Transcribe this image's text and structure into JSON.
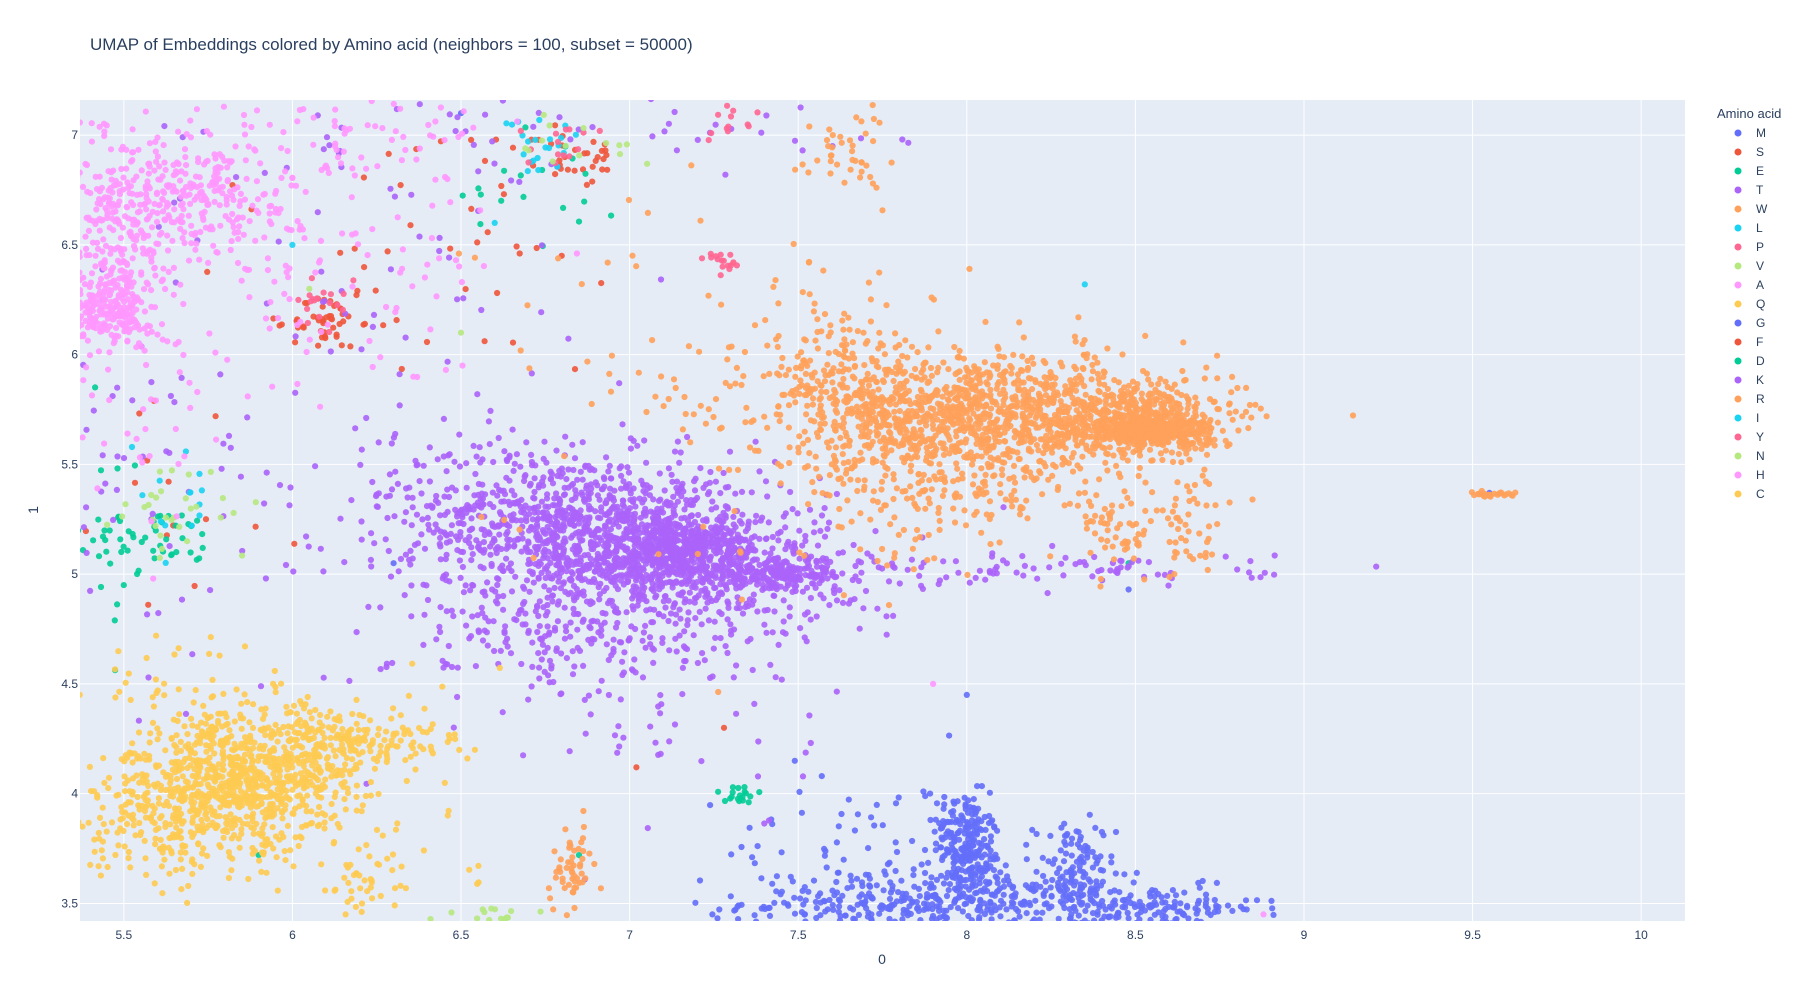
{
  "chart_data": {
    "type": "scatter",
    "title": "UMAP of Embeddings colored by Amino acid (neighbors = 100, subset = 50000)",
    "xlabel": "0",
    "ylabel": "1",
    "xlim": [
      5.37,
      10.13
    ],
    "ylim": [
      3.42,
      7.16
    ],
    "x_ticks": [
      "5.5",
      "6",
      "6.5",
      "7",
      "7.5",
      "8",
      "8.5",
      "9",
      "9.5",
      "10"
    ],
    "x_tick_values": [
      5.5,
      6,
      6.5,
      7,
      7.5,
      8,
      8.5,
      9,
      9.5,
      10
    ],
    "y_ticks": [
      "3.5",
      "4",
      "4.5",
      "5",
      "5.5",
      "6",
      "6.5",
      "7"
    ],
    "y_tick_values": [
      3.5,
      4,
      4.5,
      5,
      5.5,
      6,
      6.5,
      7
    ],
    "grid": true,
    "legend_title": "Amino acid",
    "legend_placement": "right",
    "series": [
      {
        "name": "M",
        "color": "#636efa",
        "clusters": [
          {
            "cx": 8.0,
            "cy": 3.75,
            "sx": 0.05,
            "sy": 0.14,
            "n": 260,
            "r": -0.3
          },
          {
            "cx": 7.9,
            "cy": 3.5,
            "sx": 0.28,
            "sy": 0.07,
            "n": 360
          },
          {
            "cx": 8.32,
            "cy": 3.62,
            "sx": 0.06,
            "sy": 0.13,
            "n": 130
          },
          {
            "cx": 8.55,
            "cy": 3.48,
            "sx": 0.16,
            "sy": 0.05,
            "n": 140
          },
          {
            "cx": 7.65,
            "cy": 3.75,
            "sx": 0.18,
            "sy": 0.15,
            "n": 55
          }
        ],
        "extra": [
          [
            9.55,
            5.37
          ],
          [
            8.0,
            4.45
          ],
          [
            7.49,
            4.15
          ],
          [
            7.57,
            4.08
          ],
          [
            8.48,
            4.93
          ],
          [
            6.3,
            5.05
          ],
          [
            6.5,
            7.1
          ]
        ]
      },
      {
        "name": "S",
        "color": "#ef553b",
        "clusters": [
          {
            "cx": 6.1,
            "cy": 6.15,
            "sx": 0.05,
            "sy": 0.06,
            "n": 45
          },
          {
            "cx": 6.85,
            "cy": 6.9,
            "sx": 0.06,
            "sy": 0.07,
            "n": 30
          },
          {
            "cx": 6.4,
            "cy": 6.5,
            "sx": 0.4,
            "sy": 0.35,
            "n": 45
          },
          {
            "cx": 5.6,
            "cy": 5.4,
            "sx": 0.25,
            "sy": 0.3,
            "n": 20
          }
        ],
        "extra": [
          [
            7.28,
            4.3
          ],
          [
            7.02,
            4.12
          ]
        ]
      },
      {
        "name": "E",
        "color": "#00cc96",
        "clusters": [
          {
            "cx": 5.6,
            "cy": 5.15,
            "sx": 0.1,
            "sy": 0.07,
            "n": 45
          },
          {
            "cx": 7.32,
            "cy": 4.0,
            "sx": 0.04,
            "sy": 0.025,
            "n": 18
          },
          {
            "cx": 6.75,
            "cy": 6.8,
            "sx": 0.12,
            "sy": 0.15,
            "n": 18
          },
          {
            "cx": 5.45,
            "cy": 5.2,
            "sx": 0.06,
            "sy": 0.3,
            "n": 18
          }
        ],
        "extra": [
          [
            8.48,
            5.05
          ],
          [
            6.85,
            3.72
          ],
          [
            5.9,
            3.72
          ],
          [
            5.5,
            4.95
          ]
        ]
      },
      {
        "name": "T",
        "color": "#ab63fa",
        "clusters": [
          {
            "cx": 6.95,
            "cy": 5.15,
            "sx": 0.32,
            "sy": 0.2,
            "n": 1600,
            "r": -0.35
          },
          {
            "cx": 7.45,
            "cy": 5.0,
            "sx": 0.1,
            "sy": 0.035,
            "n": 200
          },
          {
            "cx": 7.15,
            "cy": 5.1,
            "sx": 0.12,
            "sy": 0.08,
            "n": 450
          },
          {
            "cx": 6.8,
            "cy": 4.7,
            "sx": 0.25,
            "sy": 0.15,
            "n": 180
          },
          {
            "cx": 7.15,
            "cy": 4.3,
            "sx": 0.2,
            "sy": 0.25,
            "n": 40
          },
          {
            "cx": 8.3,
            "cy": 5.02,
            "sx": 0.3,
            "sy": 0.04,
            "n": 80
          },
          {
            "cx": 6.2,
            "cy": 5.9,
            "sx": 0.5,
            "sy": 0.8,
            "n": 120
          },
          {
            "cx": 6.8,
            "cy": 7.0,
            "sx": 0.5,
            "sy": 0.12,
            "n": 50
          },
          {
            "cx": 5.5,
            "cy": 5.4,
            "sx": 0.1,
            "sy": 0.35,
            "n": 30
          }
        ],
        "extra": []
      },
      {
        "name": "W",
        "color": "#ffa15a",
        "clusters": [
          {
            "cx": 8.1,
            "cy": 5.72,
            "sx": 0.32,
            "sy": 0.14,
            "n": 1100,
            "r": -0.1
          },
          {
            "cx": 8.5,
            "cy": 5.72,
            "sx": 0.12,
            "sy": 0.07,
            "n": 350
          },
          {
            "cx": 8.55,
            "cy": 5.65,
            "sx": 0.08,
            "sy": 0.03,
            "n": 350
          },
          {
            "cx": 7.9,
            "cy": 5.55,
            "sx": 0.18,
            "sy": 0.25,
            "n": 350
          },
          {
            "cx": 8.65,
            "cy": 5.2,
            "sx": 0.05,
            "sy": 0.12,
            "n": 45
          },
          {
            "cx": 8.45,
            "cy": 5.2,
            "sx": 0.06,
            "sy": 0.1,
            "n": 60
          },
          {
            "cx": 7.65,
            "cy": 5.9,
            "sx": 0.14,
            "sy": 0.18,
            "n": 160
          },
          {
            "cx": 7.3,
            "cy": 5.9,
            "sx": 0.35,
            "sy": 0.5,
            "n": 90
          },
          {
            "cx": 7.65,
            "cy": 6.95,
            "sx": 0.06,
            "sy": 0.12,
            "n": 40
          },
          {
            "cx": 6.82,
            "cy": 3.65,
            "sx": 0.035,
            "sy": 0.09,
            "n": 55,
            "r": 0.55
          },
          {
            "cx": 9.57,
            "cy": 5.36,
            "sx": 0.035,
            "sy": 0.006,
            "n": 28
          }
        ],
        "extra": []
      },
      {
        "name": "L",
        "color": "#19d3f3",
        "clusters": [
          {
            "cx": 6.75,
            "cy": 6.95,
            "sx": 0.06,
            "sy": 0.08,
            "n": 22
          },
          {
            "cx": 5.65,
            "cy": 5.3,
            "sx": 0.08,
            "sy": 0.12,
            "n": 14
          }
        ],
        "extra": [
          [
            8.35,
            6.32
          ],
          [
            6.0,
            6.5
          ],
          [
            6.6,
            6.6
          ]
        ]
      },
      {
        "name": "P",
        "color": "#ff6692",
        "clusters": [
          {
            "cx": 7.27,
            "cy": 6.42,
            "sx": 0.025,
            "sy": 0.025,
            "n": 16
          },
          {
            "cx": 6.1,
            "cy": 6.2,
            "sx": 0.05,
            "sy": 0.05,
            "n": 18
          },
          {
            "cx": 6.8,
            "cy": 6.95,
            "sx": 0.06,
            "sy": 0.08,
            "n": 14
          },
          {
            "cx": 7.3,
            "cy": 7.05,
            "sx": 0.04,
            "sy": 0.04,
            "n": 12
          }
        ],
        "extra": []
      },
      {
        "name": "V",
        "color": "#b6e880",
        "clusters": [
          {
            "cx": 5.65,
            "cy": 5.3,
            "sx": 0.1,
            "sy": 0.12,
            "n": 30
          },
          {
            "cx": 6.6,
            "cy": 3.45,
            "sx": 0.12,
            "sy": 0.025,
            "n": 14
          },
          {
            "cx": 6.85,
            "cy": 6.95,
            "sx": 0.1,
            "sy": 0.1,
            "n": 14
          }
        ],
        "extra": [
          [
            6.05,
            6.3
          ],
          [
            6.5,
            6.1
          ]
        ]
      },
      {
        "name": "A",
        "color": "#ff97ff",
        "clusters": [
          {
            "cx": 5.45,
            "cy": 6.22,
            "sx": 0.07,
            "sy": 0.09,
            "n": 250
          },
          {
            "cx": 5.65,
            "cy": 6.72,
            "sx": 0.18,
            "sy": 0.15,
            "n": 350
          },
          {
            "cx": 5.5,
            "cy": 6.5,
            "sx": 0.08,
            "sy": 0.25,
            "n": 130
          },
          {
            "cx": 6.05,
            "cy": 6.55,
            "sx": 0.3,
            "sy": 0.4,
            "n": 140
          },
          {
            "cx": 6.3,
            "cy": 7.0,
            "sx": 0.15,
            "sy": 0.08,
            "n": 40
          },
          {
            "cx": 5.6,
            "cy": 5.7,
            "sx": 0.15,
            "sy": 0.25,
            "n": 30
          }
        ],
        "extra": [
          [
            7.9,
            4.5
          ],
          [
            8.88,
            3.45
          ]
        ]
      },
      {
        "name": "Q",
        "color": "#fecb52",
        "clusters": [
          {
            "cx": 5.8,
            "cy": 4.02,
            "sx": 0.2,
            "sy": 0.18,
            "n": 900,
            "r": 0.3
          },
          {
            "cx": 5.95,
            "cy": 4.12,
            "sx": 0.15,
            "sy": 0.14,
            "n": 250
          },
          {
            "cx": 6.25,
            "cy": 4.25,
            "sx": 0.12,
            "sy": 0.06,
            "n": 100
          },
          {
            "cx": 6.22,
            "cy": 3.6,
            "sx": 0.06,
            "sy": 0.12,
            "n": 45
          },
          {
            "cx": 5.7,
            "cy": 4.5,
            "sx": 0.2,
            "sy": 0.1,
            "n": 30
          },
          {
            "cx": 6.5,
            "cy": 4.0,
            "sx": 0.1,
            "sy": 0.3,
            "n": 12
          }
        ],
        "extra": []
      },
      {
        "name": "G",
        "color": "#636efa",
        "clusters": [],
        "extra": []
      },
      {
        "name": "F",
        "color": "#ef553b",
        "clusters": [],
        "extra": []
      },
      {
        "name": "D",
        "color": "#00cc96",
        "clusters": [],
        "extra": []
      },
      {
        "name": "K",
        "color": "#ab63fa",
        "clusters": [],
        "extra": []
      },
      {
        "name": "R",
        "color": "#ffa15a",
        "clusters": [],
        "extra": []
      },
      {
        "name": "I",
        "color": "#19d3f3",
        "clusters": [],
        "extra": []
      },
      {
        "name": "Y",
        "color": "#ff6692",
        "clusters": [],
        "extra": []
      },
      {
        "name": "N",
        "color": "#b6e880",
        "clusters": [],
        "extra": []
      },
      {
        "name": "H",
        "color": "#ff97ff",
        "clusters": [],
        "extra": []
      },
      {
        "name": "C",
        "color": "#fecb52",
        "clusters": [],
        "extra": []
      }
    ],
    "plot_bg": "#e5ecf6",
    "grid_color": "#ffffff"
  }
}
